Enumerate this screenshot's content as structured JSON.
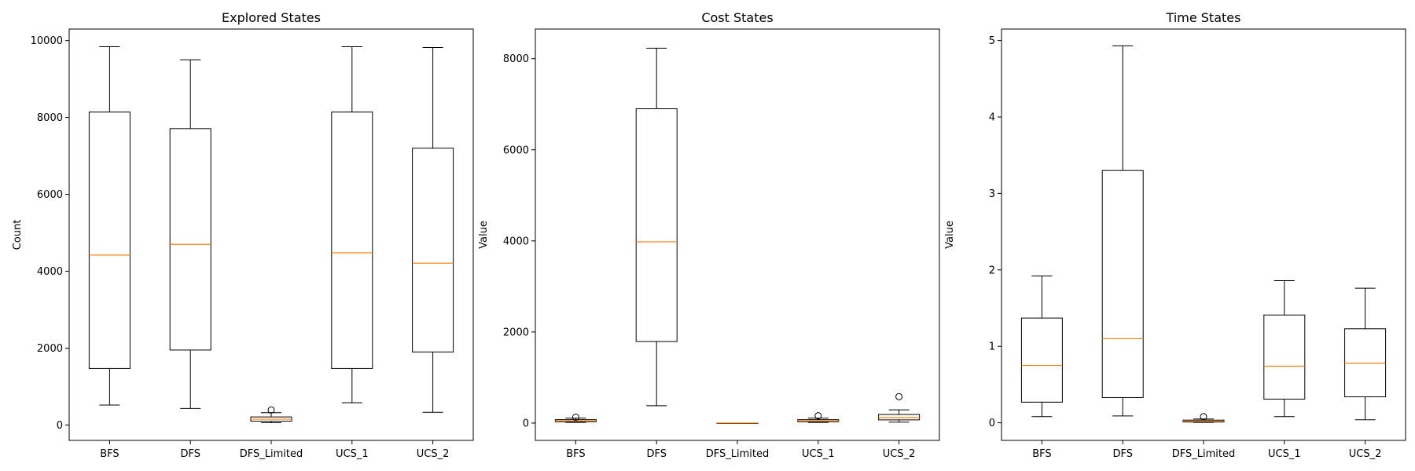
{
  "chart_data": [
    {
      "type": "box",
      "title": "Explored States",
      "xlabel": "",
      "ylabel": "Count",
      "ylim": [
        -400,
        10300
      ],
      "yticks": [
        0,
        2000,
        4000,
        6000,
        8000,
        10000
      ],
      "categories": [
        "BFS",
        "DFS",
        "DFS_Limited",
        "UCS_1",
        "UCS_2"
      ],
      "boxes": [
        {
          "whisker_low": 520,
          "q1": 1470,
          "median": 4420,
          "q3": 8140,
          "whisker_high": 9840,
          "outliers": []
        },
        {
          "whisker_low": 430,
          "q1": 1950,
          "median": 4700,
          "q3": 7710,
          "whisker_high": 9500,
          "outliers": []
        },
        {
          "whisker_low": 60,
          "q1": 100,
          "median": 150,
          "q3": 210,
          "whisker_high": 320,
          "outliers": [
            390
          ]
        },
        {
          "whisker_low": 580,
          "q1": 1470,
          "median": 4480,
          "q3": 8140,
          "whisker_high": 9840,
          "outliers": []
        },
        {
          "whisker_low": 330,
          "q1": 1900,
          "median": 4210,
          "q3": 7200,
          "whisker_high": 9820,
          "outliers": []
        }
      ]
    },
    {
      "type": "box",
      "title": "Cost States",
      "xlabel": "",
      "ylabel": "Value",
      "ylim": [
        -380,
        8650
      ],
      "yticks": [
        0,
        2000,
        4000,
        6000,
        8000
      ],
      "categories": [
        "BFS",
        "DFS",
        "DFS_Limited",
        "UCS_1",
        "UCS_2"
      ],
      "boxes": [
        {
          "whisker_low": 15,
          "q1": 30,
          "median": 50,
          "q3": 75,
          "whisker_high": 110,
          "outliers": [
            130
          ]
        },
        {
          "whisker_low": 380,
          "q1": 1790,
          "median": 3980,
          "q3": 6900,
          "whisker_high": 8230,
          "outliers": []
        },
        {
          "whisker_low": 0,
          "q1": 0,
          "median": 0,
          "q3": 0,
          "whisker_high": 0,
          "outliers": []
        },
        {
          "whisker_low": 15,
          "q1": 30,
          "median": 50,
          "q3": 75,
          "whisker_high": 110,
          "outliers": [
            160
          ]
        },
        {
          "whisker_low": 20,
          "q1": 70,
          "median": 120,
          "q3": 190,
          "whisker_high": 290,
          "outliers": [
            580
          ]
        }
      ]
    },
    {
      "type": "box",
      "title": "Time States",
      "xlabel": "",
      "ylabel": "Value",
      "ylim": [
        -0.23,
        5.15
      ],
      "yticks": [
        0,
        1,
        2,
        3,
        4,
        5
      ],
      "categories": [
        "BFS",
        "DFS",
        "DFS_Limited",
        "UCS_1",
        "UCS_2"
      ],
      "boxes": [
        {
          "whisker_low": 0.08,
          "q1": 0.27,
          "median": 0.75,
          "q3": 1.37,
          "whisker_high": 1.92,
          "outliers": []
        },
        {
          "whisker_low": 0.09,
          "q1": 0.33,
          "median": 1.1,
          "q3": 3.3,
          "whisker_high": 4.93,
          "outliers": []
        },
        {
          "whisker_low": 0.005,
          "q1": 0.01,
          "median": 0.02,
          "q3": 0.035,
          "whisker_high": 0.05,
          "outliers": [
            0.08
          ]
        },
        {
          "whisker_low": 0.08,
          "q1": 0.31,
          "median": 0.74,
          "q3": 1.41,
          "whisker_high": 1.86,
          "outliers": []
        },
        {
          "whisker_low": 0.04,
          "q1": 0.34,
          "median": 0.78,
          "q3": 1.23,
          "whisker_high": 1.76,
          "outliers": []
        }
      ]
    }
  ],
  "colors": {
    "box": "#000000",
    "median": "#ff7f0e",
    "background": "#ffffff"
  }
}
